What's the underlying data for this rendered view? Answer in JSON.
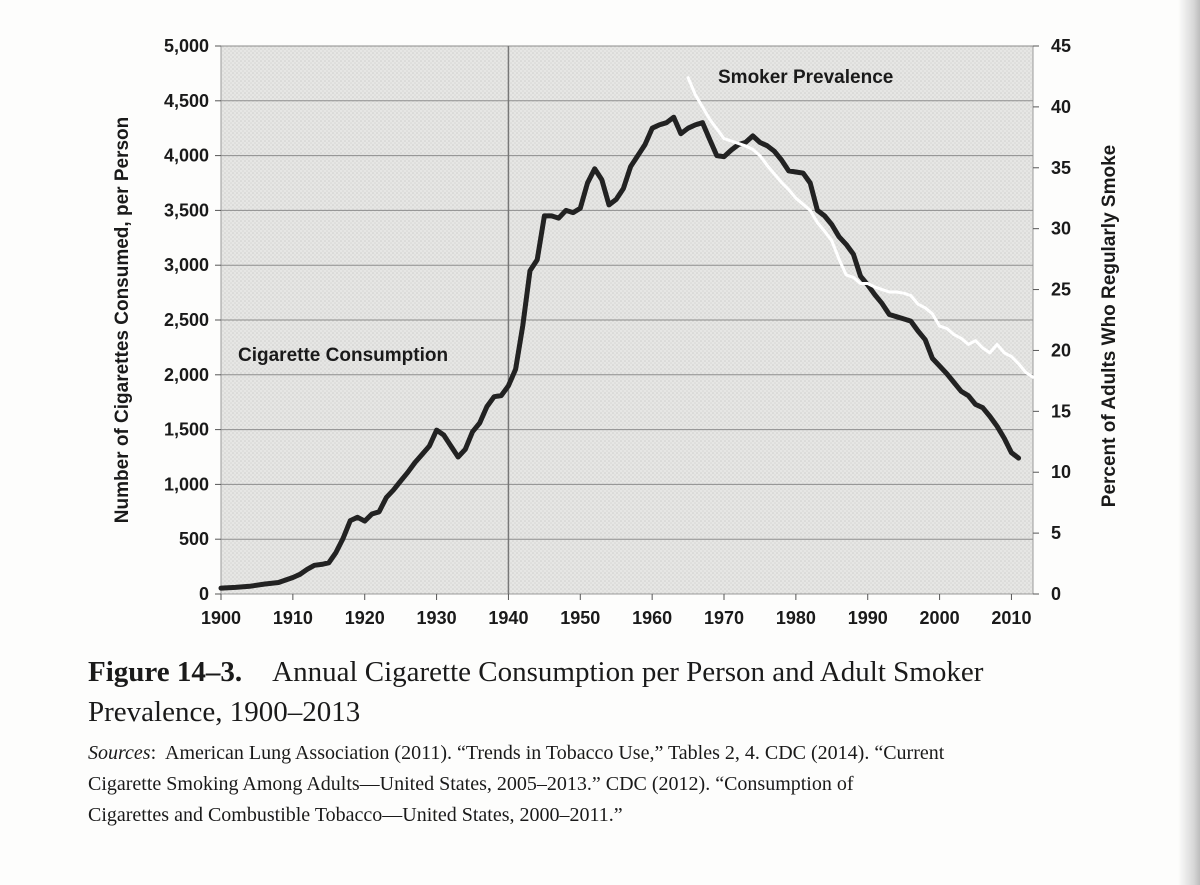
{
  "chart_data": {
    "type": "line",
    "x_label_ticks": [
      "1900",
      "1910",
      "1920",
      "1930",
      "1940",
      "1950",
      "1960",
      "1970",
      "1980",
      "1990",
      "2000",
      "2010"
    ],
    "xlim": [
      1900,
      2013
    ],
    "left_axis": {
      "title": "Number of Cigarettes Consumed, per Person",
      "ylim": [
        0,
        5000
      ],
      "ticks": [
        0,
        500,
        1000,
        1500,
        2000,
        2500,
        3000,
        3500,
        4000,
        4500,
        5000
      ],
      "tick_labels": [
        "0",
        "500",
        "1,000",
        "1,500",
        "2,000",
        "2,500",
        "3,000",
        "3,500",
        "4,000",
        "4,500",
        "5,000"
      ]
    },
    "right_axis": {
      "title": "Percent of Adults Who Regularly Smoke",
      "ylim": [
        0,
        45
      ],
      "ticks": [
        0,
        5,
        10,
        15,
        20,
        25,
        30,
        35,
        40,
        45
      ],
      "tick_labels": [
        "0",
        "5",
        "10",
        "15",
        "20",
        "25",
        "30",
        "35",
        "40",
        "45"
      ]
    },
    "reference_line_x": 1940,
    "grid": true,
    "series": [
      {
        "name": "Cigarette Consumption",
        "axis": "left",
        "color": "#222222",
        "x": [
          1900,
          1902,
          1904,
          1906,
          1908,
          1910,
          1911,
          1912,
          1913,
          1914,
          1915,
          1916,
          1917,
          1918,
          1919,
          1920,
          1921,
          1922,
          1923,
          1924,
          1925,
          1926,
          1927,
          1928,
          1929,
          1930,
          1931,
          1932,
          1933,
          1934,
          1935,
          1936,
          1937,
          1938,
          1939,
          1940,
          1941,
          1942,
          1943,
          1944,
          1945,
          1946,
          1947,
          1948,
          1949,
          1950,
          1951,
          1952,
          1953,
          1954,
          1955,
          1956,
          1957,
          1958,
          1959,
          1960,
          1961,
          1962,
          1963,
          1964,
          1965,
          1966,
          1967,
          1968,
          1969,
          1970,
          1971,
          1972,
          1973,
          1974,
          1975,
          1976,
          1977,
          1978,
          1979,
          1980,
          1981,
          1982,
          1983,
          1984,
          1985,
          1986,
          1987,
          1988,
          1989,
          1990,
          1991,
          1992,
          1993,
          1994,
          1995,
          1996,
          1997,
          1998,
          1999,
          2000,
          2001,
          2002,
          2003,
          2004,
          2005,
          2006,
          2007,
          2008,
          2009,
          2010,
          2011
        ],
        "values": [
          54,
          60,
          70,
          90,
          105,
          151,
          180,
          225,
          262,
          270,
          285,
          380,
          510,
          670,
          700,
          665,
          730,
          750,
          880,
          950,
          1030,
          1110,
          1200,
          1275,
          1350,
          1495,
          1450,
          1350,
          1250,
          1320,
          1480,
          1560,
          1710,
          1800,
          1810,
          1900,
          2050,
          2450,
          2950,
          3050,
          3450,
          3450,
          3430,
          3500,
          3480,
          3520,
          3750,
          3880,
          3780,
          3550,
          3600,
          3700,
          3900,
          4000,
          4100,
          4250,
          4280,
          4300,
          4350,
          4200,
          4250,
          4280,
          4300,
          4150,
          4000,
          3990,
          4050,
          4100,
          4120,
          4180,
          4120,
          4090,
          4040,
          3960,
          3860,
          3850,
          3840,
          3750,
          3500,
          3450,
          3370,
          3260,
          3190,
          3100,
          2900,
          2820,
          2730,
          2650,
          2550,
          2530,
          2510,
          2490,
          2400,
          2320,
          2150,
          2080,
          2010,
          1930,
          1850,
          1810,
          1730,
          1700,
          1620,
          1530,
          1420,
          1290,
          1240
        ]
      },
      {
        "name": "Smoker Prevalence",
        "axis": "right",
        "color": "#ffffff",
        "x": [
          1965,
          1966,
          1967,
          1968,
          1969,
          1970,
          1971,
          1972,
          1973,
          1974,
          1975,
          1976,
          1977,
          1978,
          1979,
          1980,
          1981,
          1982,
          1983,
          1984,
          1985,
          1986,
          1987,
          1988,
          1989,
          1990,
          1991,
          1992,
          1993,
          1994,
          1995,
          1996,
          1997,
          1998,
          1999,
          2000,
          2001,
          2002,
          2003,
          2004,
          2005,
          2006,
          2007,
          2008,
          2009,
          2010,
          2011,
          2012,
          2013
        ],
        "values": [
          42.4,
          41.0,
          40.0,
          39.0,
          38.2,
          37.4,
          37.2,
          37.0,
          36.8,
          36.5,
          36.0,
          35.2,
          34.5,
          33.8,
          33.2,
          32.5,
          32.0,
          31.5,
          30.5,
          29.8,
          29.0,
          27.5,
          26.2,
          26.0,
          25.5,
          25.5,
          25.2,
          25.0,
          24.8,
          24.8,
          24.7,
          24.5,
          23.8,
          23.5,
          23.0,
          22.0,
          21.8,
          21.3,
          21.0,
          20.5,
          20.8,
          20.2,
          19.8,
          20.5,
          19.8,
          19.5,
          18.9,
          18.2,
          17.8
        ]
      }
    ],
    "annotations": {
      "consumption_label": "Cigarette Consumption",
      "prevalence_label": "Smoker Prevalence"
    }
  },
  "caption": {
    "figure_label": "Figure 14–3.",
    "figure_title_part1": "Annual Cigarette Consumption per Person and Adult Smoker",
    "figure_title_part2": "Prevalence, 1900–2013",
    "sources_label": "Sources",
    "sources_line1": "American Lung Association (2011). “Trends in Tobacco Use,” Tables 2, 4. CDC (2014). “Current",
    "sources_line2": "Cigarette Smoking Among Adults—United States, 2005–2013.” CDC (2012). “Consumption of",
    "sources_line3": "Cigarettes and Combustible Tobacco—United States, 2000–2011.”"
  }
}
